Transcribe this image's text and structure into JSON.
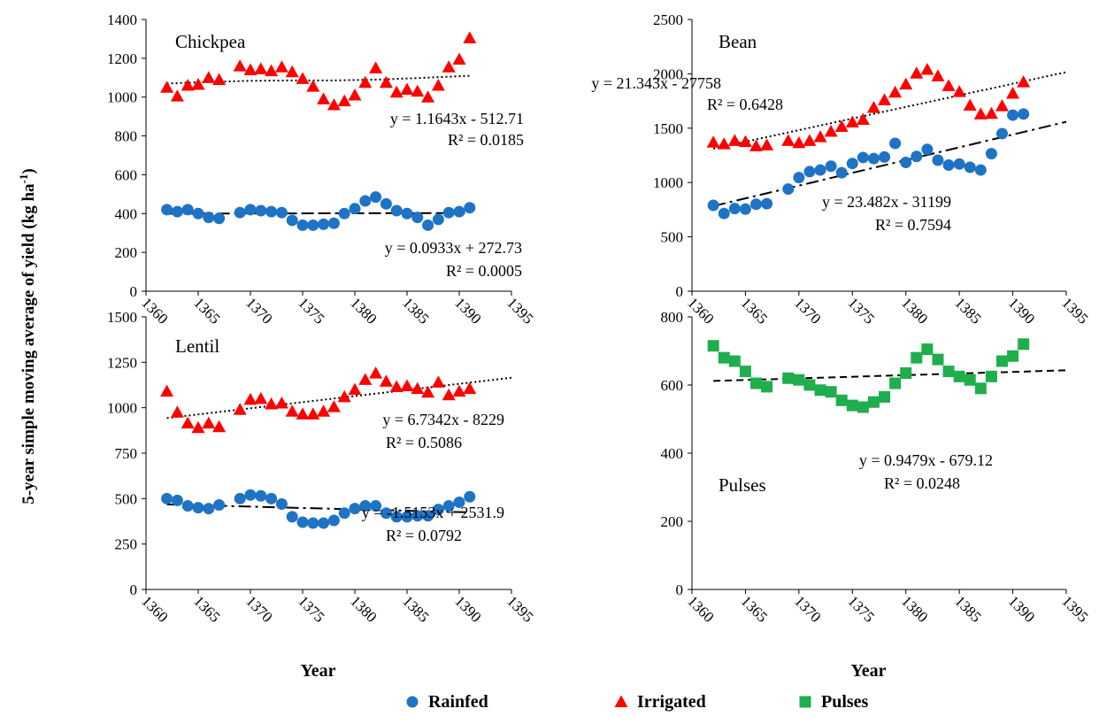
{
  "figure": {
    "ylabel_main": "5-year simple moving average of yield (kg ha",
    "ylabel_sup": "-1",
    "ylabel_end": ")"
  },
  "legend": [
    {
      "label": "Rainfed",
      "marker": "circle",
      "color": "#1f73c4"
    },
    {
      "label": "Irrigated",
      "marker": "triangle",
      "color": "#ff0000"
    },
    {
      "label": "Pulses",
      "marker": "square",
      "color": "#1fae4c"
    }
  ],
  "chart_data": [
    {
      "type": "scatter",
      "title": "Chickpea",
      "xlabel": "",
      "ylabel": "",
      "xlim": [
        1360,
        1395
      ],
      "ylim": [
        0,
        1400
      ],
      "xticks": [
        "1360",
        "1365",
        "1370",
        "1375",
        "1380",
        "1385",
        "1390",
        "1395"
      ],
      "yticks": [
        "0",
        "200",
        "400",
        "600",
        "800",
        "1000",
        "1200",
        "1400"
      ],
      "series": [
        {
          "name": "Rainfed",
          "marker": "circle",
          "color": "#1f73c4",
          "x": [
            1362,
            1363,
            1364,
            1365,
            1366,
            1367,
            1369,
            1370,
            1371,
            1372,
            1373,
            1374,
            1375,
            1376,
            1377,
            1378,
            1379,
            1380,
            1381,
            1382,
            1383,
            1384,
            1385,
            1386,
            1387,
            1388,
            1389,
            1390,
            1391
          ],
          "y": [
            420,
            410,
            420,
            400,
            380,
            375,
            405,
            420,
            415,
            410,
            405,
            365,
            340,
            340,
            345,
            350,
            400,
            425,
            465,
            485,
            450,
            415,
            400,
            380,
            340,
            370,
            405,
            410,
            430
          ],
          "trendline": {
            "equation": "y = 0.0933x + 272.73",
            "r2": "R² = 0.0005",
            "slope": 0.0933,
            "intercept": 272.73,
            "style": "dash-long",
            "x_from": 1362,
            "x_to": 1391
          }
        },
        {
          "name": "Irrigated",
          "marker": "triangle",
          "color": "#ff0000",
          "x": [
            1362,
            1363,
            1364,
            1365,
            1366,
            1367,
            1369,
            1370,
            1371,
            1372,
            1373,
            1374,
            1375,
            1376,
            1377,
            1378,
            1379,
            1380,
            1381,
            1382,
            1383,
            1384,
            1385,
            1386,
            1387,
            1388,
            1389,
            1390,
            1391
          ],
          "y": [
            1050,
            1005,
            1060,
            1065,
            1100,
            1090,
            1160,
            1140,
            1145,
            1135,
            1155,
            1130,
            1095,
            1055,
            990,
            960,
            980,
            1010,
            1075,
            1150,
            1075,
            1025,
            1040,
            1030,
            1000,
            1060,
            1155,
            1195,
            1305
          ],
          "trendline": {
            "equation": "y = 1.1643x - 512.71",
            "r2": "R² = 0.0185",
            "points_x": [
              1362,
              1366,
              1370,
              1374,
              1378,
              1382,
              1386,
              1391
            ],
            "points_y": [
              1070,
              1078,
              1084,
              1086,
              1086,
              1090,
              1098,
              1110
            ],
            "style": "dotted"
          }
        }
      ],
      "annotations": [
        {
          "text": "y = 1.1643x - 512.71"
        },
        {
          "text": "R² = 0.0185"
        },
        {
          "text": "y = 0.0933x + 272.73"
        },
        {
          "text": "R² = 0.0005"
        }
      ]
    },
    {
      "type": "scatter",
      "title": "Bean",
      "xlabel": "",
      "ylabel": "",
      "xlim": [
        1360,
        1395
      ],
      "ylim": [
        0,
        2500
      ],
      "xticks": [
        "1360",
        "1365",
        "1370",
        "1375",
        "1380",
        "1385",
        "1390",
        "1395"
      ],
      "yticks": [
        "0",
        "500",
        "1000",
        "1500",
        "2000",
        "2500"
      ],
      "series": [
        {
          "name": "Rainfed",
          "marker": "circle",
          "color": "#1f73c4",
          "x": [
            1362,
            1363,
            1364,
            1365,
            1366,
            1367,
            1369,
            1370,
            1371,
            1372,
            1373,
            1374,
            1375,
            1376,
            1377,
            1378,
            1379,
            1380,
            1381,
            1382,
            1383,
            1384,
            1385,
            1386,
            1387,
            1388,
            1389,
            1390,
            1391
          ],
          "y": [
            790,
            715,
            760,
            755,
            800,
            805,
            940,
            1045,
            1100,
            1115,
            1150,
            1090,
            1175,
            1230,
            1220,
            1235,
            1360,
            1185,
            1240,
            1305,
            1205,
            1160,
            1170,
            1140,
            1115,
            1265,
            1450,
            1620,
            1630
          ],
          "trendline": {
            "equation": "y = 23.482x - 31199",
            "r2": "R² = 0.7594",
            "slope": 23.482,
            "intercept": -31199,
            "style": "dash-dot",
            "x_from": 1362,
            "x_to": 1395
          }
        },
        {
          "name": "Irrigated",
          "marker": "triangle",
          "color": "#ff0000",
          "x": [
            1362,
            1363,
            1364,
            1365,
            1366,
            1367,
            1369,
            1370,
            1371,
            1372,
            1373,
            1374,
            1375,
            1376,
            1377,
            1378,
            1379,
            1380,
            1381,
            1382,
            1383,
            1384,
            1385,
            1386,
            1387,
            1388,
            1389,
            1390,
            1391
          ],
          "y": [
            1370,
            1355,
            1385,
            1375,
            1335,
            1345,
            1385,
            1365,
            1385,
            1420,
            1470,
            1515,
            1555,
            1580,
            1690,
            1760,
            1830,
            1905,
            2005,
            2040,
            1980,
            1890,
            1835,
            1710,
            1630,
            1635,
            1705,
            1820,
            1925
          ],
          "trendline": {
            "equation": "y = 21.343x - 27758",
            "r2": "R² = 0.6428",
            "slope": 21.343,
            "intercept": -27758,
            "style": "dotted",
            "x_from": 1362,
            "x_to": 1395
          }
        }
      ],
      "annotations": [
        {
          "text": "y = 21.343x - 27758"
        },
        {
          "text": "R² = 0.6428"
        },
        {
          "text": "y = 23.482x - 31199"
        },
        {
          "text": "R² = 0.7594"
        }
      ]
    },
    {
      "type": "scatter",
      "title": "Lentil",
      "xlabel": "Year",
      "ylabel": "",
      "xlim": [
        1360,
        1395
      ],
      "ylim": [
        0,
        1500
      ],
      "xticks": [
        "1360",
        "1365",
        "1370",
        "1375",
        "1380",
        "1385",
        "1390",
        "1395"
      ],
      "yticks": [
        "0",
        "250",
        "500",
        "750",
        "1000",
        "1250",
        "1500"
      ],
      "series": [
        {
          "name": "Rainfed",
          "marker": "circle",
          "color": "#1f73c4",
          "x": [
            1362,
            1363,
            1364,
            1365,
            1366,
            1367,
            1369,
            1370,
            1371,
            1372,
            1373,
            1374,
            1375,
            1376,
            1377,
            1378,
            1379,
            1380,
            1381,
            1382,
            1383,
            1384,
            1385,
            1386,
            1387,
            1388,
            1389,
            1390,
            1391
          ],
          "y": [
            500,
            490,
            460,
            450,
            445,
            465,
            500,
            520,
            515,
            500,
            470,
            400,
            370,
            365,
            365,
            380,
            420,
            445,
            460,
            460,
            420,
            400,
            400,
            405,
            405,
            440,
            460,
            480,
            510
          ],
          "trendline": {
            "equation": "y = -1.5153x + 2531.9",
            "r2": "R² = 0.0792",
            "slope": -1.5153,
            "intercept": 2531.9,
            "style": "dash-dot",
            "x_from": 1362,
            "x_to": 1391
          }
        },
        {
          "name": "Irrigated",
          "marker": "triangle",
          "color": "#ff0000",
          "x": [
            1362,
            1363,
            1364,
            1365,
            1366,
            1367,
            1369,
            1370,
            1371,
            1372,
            1373,
            1374,
            1375,
            1376,
            1377,
            1378,
            1379,
            1380,
            1381,
            1382,
            1383,
            1384,
            1385,
            1386,
            1387,
            1388,
            1389,
            1390,
            1391
          ],
          "y": [
            1090,
            975,
            915,
            890,
            915,
            895,
            990,
            1045,
            1050,
            1020,
            1025,
            980,
            965,
            965,
            980,
            1005,
            1060,
            1100,
            1155,
            1190,
            1145,
            1115,
            1120,
            1105,
            1085,
            1140,
            1070,
            1090,
            1105
          ],
          "trendline": {
            "equation": "y = 6.7342x - 8229",
            "r2": "R² = 0.5086",
            "slope": 6.7342,
            "intercept": -8229,
            "style": "dotted",
            "x_from": 1362,
            "x_to": 1395
          }
        }
      ],
      "annotations": [
        {
          "text": "y = 6.7342x - 8229"
        },
        {
          "text": "R² = 0.5086"
        },
        {
          "text": "y = -1.5153x + 2531.9"
        },
        {
          "text": "R² = 0.0792"
        }
      ]
    },
    {
      "type": "scatter",
      "title": "Pulses",
      "xlabel": "Year",
      "ylabel": "",
      "xlim": [
        1360,
        1395
      ],
      "ylim": [
        0,
        800
      ],
      "xticks": [
        "1360",
        "1365",
        "1370",
        "1375",
        "1380",
        "1385",
        "1390",
        "1395"
      ],
      "yticks": [
        "0",
        "200",
        "400",
        "600",
        "800"
      ],
      "series": [
        {
          "name": "Pulses",
          "marker": "square",
          "color": "#1fae4c",
          "x": [
            1362,
            1363,
            1364,
            1365,
            1366,
            1367,
            1369,
            1370,
            1371,
            1372,
            1373,
            1374,
            1375,
            1376,
            1377,
            1378,
            1379,
            1380,
            1381,
            1382,
            1383,
            1384,
            1385,
            1386,
            1387,
            1388,
            1389,
            1390,
            1391
          ],
          "y": [
            715,
            680,
            670,
            640,
            605,
            595,
            620,
            615,
            600,
            585,
            580,
            555,
            540,
            535,
            550,
            565,
            605,
            635,
            680,
            705,
            675,
            640,
            625,
            615,
            590,
            625,
            670,
            685,
            720
          ],
          "trendline": {
            "equation": "y = 0.9479x - 679.12",
            "r2": "R² = 0.0248",
            "slope": 0.9479,
            "intercept": -679.12,
            "style": "dashed",
            "x_from": 1362,
            "x_to": 1395
          }
        }
      ],
      "annotations": [
        {
          "text": "y = 0.9479x - 679.12"
        },
        {
          "text": "R² = 0.0248"
        }
      ]
    }
  ]
}
